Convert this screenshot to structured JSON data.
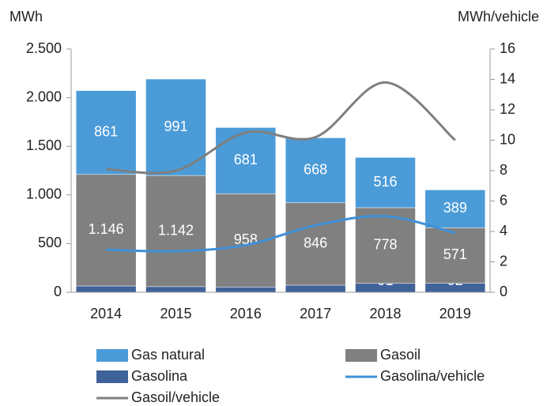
{
  "chart_data": {
    "type": "bar",
    "y_label": "MWh",
    "y2_label": "MWh/vehicle",
    "categories": [
      "2014",
      "2015",
      "2016",
      "2017",
      "2018",
      "2019"
    ],
    "series": [
      {
        "name": "Gas natural",
        "type": "bar",
        "color": "#4b9bd8",
        "values": [
          861,
          991,
          681,
          668,
          516,
          389
        ]
      },
      {
        "name": "Gasoil",
        "type": "bar",
        "color": "#808080",
        "values": [
          1146,
          1142,
          958,
          846,
          778,
          571
        ],
        "value_labels": [
          "1.146",
          "1.142",
          "958",
          "846",
          "778",
          "571"
        ]
      },
      {
        "name": "Gasolina",
        "type": "bar",
        "color": "#40629a",
        "values": [
          65,
          58,
          54,
          73,
          91,
          92
        ]
      },
      {
        "name": "Gasolina/vehicle",
        "type": "line",
        "axis": "y2",
        "color": "#3f90d8",
        "values": [
          2.8,
          2.7,
          3.1,
          4.4,
          5.0,
          3.9
        ]
      },
      {
        "name": "Gasoil/vehicle",
        "type": "line",
        "axis": "y2",
        "color": "#7f7f7f",
        "values": [
          8.1,
          8.0,
          10.5,
          10.2,
          13.8,
          10.0
        ]
      }
    ],
    "ylim": [
      0,
      2500
    ],
    "yticks": [
      0,
      500,
      {
        "value": 1000,
        "label": "1.000"
      },
      {
        "value": 1500,
        "label": "1.500"
      },
      {
        "value": 2000,
        "label": "2.000"
      },
      {
        "value": 2500,
        "label": "2.500"
      }
    ],
    "y2lim": [
      0,
      16
    ],
    "y2ticks": [
      0,
      2,
      4,
      6,
      8,
      10,
      12,
      14,
      16
    ]
  }
}
